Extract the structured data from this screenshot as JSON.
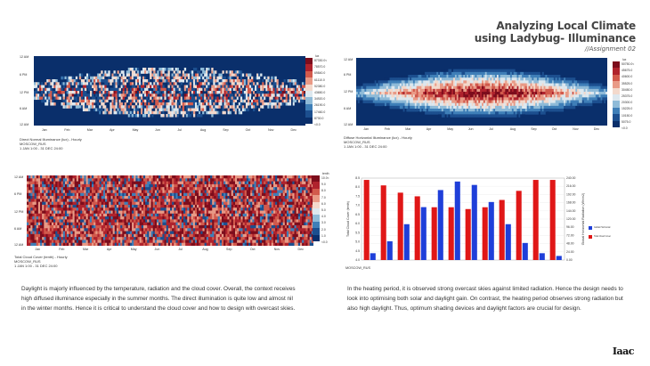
{
  "header": {
    "title_line1": "Analyzing Local Climate",
    "title_line2": "using Ladybug- Illuminance",
    "subtitle": "//Assignment 02"
  },
  "months": [
    "Jan",
    "Feb",
    "Mar",
    "Apr",
    "May",
    "Jun",
    "Jul",
    "Aug",
    "Sep",
    "Oct",
    "Nov",
    "Dec"
  ],
  "hour_ticks": [
    "12 AM",
    "6 PM",
    "12 PM",
    "6 AM",
    "12 AM"
  ],
  "panel_direct": {
    "caption_lines": [
      "Direct Normal Illuminance (lux) - Hourly",
      "MOSCOW_RUS",
      "1 JAN 1:00 - 31 DEC 24:00"
    ],
    "legend_unit": "lux",
    "legend_labels": [
      "87330.0<",
      "78570.0",
      "69840.0",
      "61110.0",
      "52380.0",
      "43650.0",
      "34920.0",
      "26190.0",
      "17460.0",
      "8730.0",
      "<0.0"
    ]
  },
  "panel_diffuse": {
    "caption_lines": [
      "Diffuse Horizontal Illuminance (lux) - Hourly",
      "MOSCOW_RUS",
      "1 JAN 1:00 - 31 DEC 24:00"
    ],
    "legend_unit": "lux",
    "legend_labels": [
      "50750.0<",
      "45675.0",
      "40600.0",
      "35525.0",
      "30450.0",
      "25375.0",
      "20300.0",
      "15225.0",
      "10150.0",
      "5075.0",
      "<0.0"
    ]
  },
  "panel_cloud": {
    "caption_lines": [
      "Total Cloud Cover (tenth) - Hourly",
      "MOSCOW_RUS",
      "1 JAN 1:00 - 31 DEC 24:00"
    ],
    "legend_unit": "tenth",
    "legend_labels": [
      "10.0<",
      "9.0",
      "8.0",
      "7.0",
      "6.0",
      "5.0",
      "4.0",
      "3.0",
      "2.0",
      "1.0",
      "<0.0"
    ]
  },
  "panel_bars": {
    "caption": "MOSCOW_RUS",
    "ylabel_left": "Total Cloud Cover (tenth)",
    "ylabel_right": "Global Horizontal Radiation (Wh/m2)",
    "left_ticks": [
      "8.5",
      "8.0",
      "7.5",
      "7.0",
      "6.5",
      "6.0",
      "5.5",
      "5.0",
      "4.5",
      "4.0"
    ],
    "right_ticks": [
      "240.00",
      "216.00",
      "192.00",
      "168.00",
      "144.00",
      "120.00",
      "96.00",
      "72.00",
      "48.00",
      "24.00",
      "0.00"
    ],
    "legend": [
      {
        "label": "Global Horizontal Radiation (Monthly)",
        "color": "#1f3fd9"
      },
      {
        "label": "Total Cloud Cover (Monthly)",
        "color": "#e01717"
      }
    ]
  },
  "chart_data": {
    "type": "bar",
    "categories": [
      "Jan",
      "Feb",
      "Mar",
      "Apr",
      "May",
      "Jun",
      "Jul",
      "Aug",
      "Sep",
      "Oct",
      "Nov",
      "Dec"
    ],
    "series": [
      {
        "name": "Total Cloud Cover (Monthly)",
        "axis": "left",
        "values": [
          8.4,
          8.1,
          7.7,
          7.5,
          6.9,
          6.9,
          6.8,
          6.9,
          7.3,
          7.8,
          8.4,
          8.4
        ]
      },
      {
        "name": "Global Horizontal Radiation (Monthly)",
        "axis": "right",
        "values": [
          20,
          55,
          105,
          155,
          205,
          230,
          220,
          170,
          105,
          50,
          20,
          12
        ]
      }
    ],
    "ylabel": "Total Cloud Cover (tenth)",
    "ylim_left": [
      4.0,
      8.5
    ],
    "ylim_right": [
      0,
      240
    ]
  },
  "paragraphs": {
    "left": [
      "Daylight is majorly influenced by the temperature, radiation and the cloud cover. Overall, the context receives",
      "high diffused illuminance especially in the summer months. The direct illumination is quite low and almost nil",
      "in the winter months. Hence it is critical to understand the cloud cover and how to design with overcast skies."
    ],
    "right": [
      "In the heating period, it is observed strong overcast skies against limited radiation. Hence the design needs to",
      "look into optimising both solar and daylight gain. On contrast, the heating period observes strong radiation but",
      "also high daylight. Thus, optimum shading devices and daylight factors are crucial for design."
    ]
  },
  "logo": "Iaac"
}
